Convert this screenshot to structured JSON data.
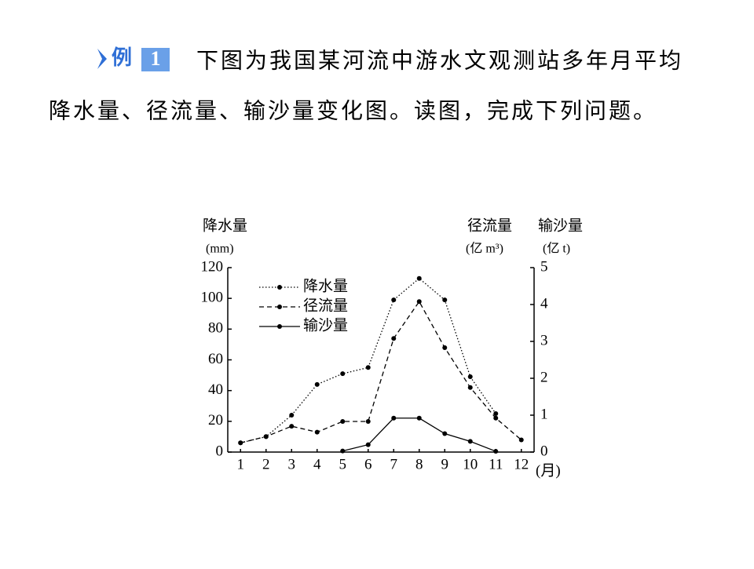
{
  "header": {
    "badge": "例",
    "badge_num": "1",
    "lines": [
      "下图为我国某河流中游水文观测站多年月平均",
      "降水量、径流量、输沙量变化图。读图，完成下列问题。"
    ]
  },
  "chart_data": {
    "type": "line",
    "ylabel": "降水量",
    "yunit": "(mm)",
    "y2labels": [
      "径流量",
      "输沙量"
    ],
    "y2units": [
      "(亿 m³)",
      "(亿 t)"
    ],
    "xlabel": "(月)",
    "categories": [
      "1",
      "2",
      "3",
      "4",
      "5",
      "6",
      "7",
      "8",
      "9",
      "10",
      "11",
      "12"
    ],
    "ylim": [
      0,
      120
    ],
    "yticks": [
      0,
      20,
      40,
      60,
      80,
      100,
      120
    ],
    "y2lim": [
      0,
      5
    ],
    "y2ticks": [
      0,
      1,
      2,
      3,
      4,
      5
    ],
    "grid": false,
    "series": [
      {
        "name": "降水量",
        "color": "#000000",
        "style": "dotted",
        "values": [
          6,
          10,
          24,
          44,
          51,
          55,
          99,
          113,
          99,
          49,
          25,
          null
        ]
      },
      {
        "name": "径流量",
        "color": "#000000",
        "style": "dashed",
        "axis": "y2",
        "values": [
          0.25,
          0.42,
          0.7,
          0.54,
          0.83,
          0.83,
          3.08,
          4.08,
          2.83,
          1.75,
          0.92,
          0.33
        ]
      },
      {
        "name": "输沙量",
        "color": "#000000",
        "style": "solid",
        "axis": "y2",
        "values": [
          null,
          null,
          null,
          null,
          0.03,
          0.2,
          0.92,
          0.92,
          0.5,
          0.29,
          0.02,
          null
        ]
      }
    ]
  }
}
